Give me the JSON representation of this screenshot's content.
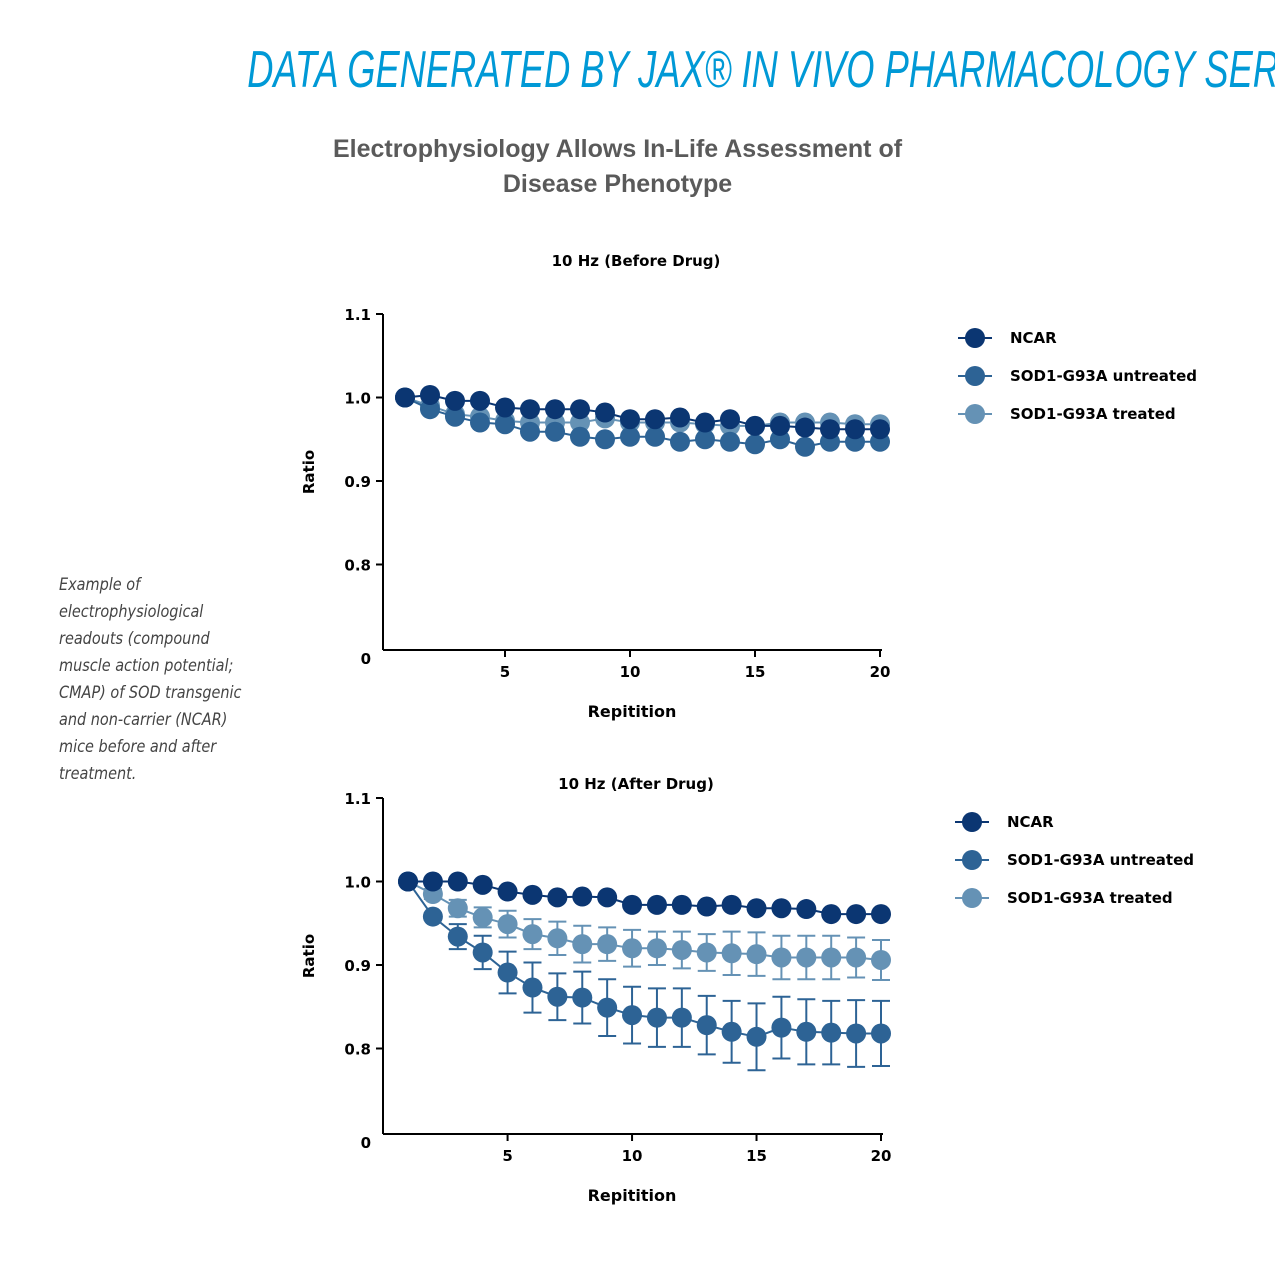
{
  "header": "DATA GENERATED BY JAX® IN VIVO PHARMACOLOGY SERVICES",
  "subtitle_lines": [
    "Electrophysiology Allows In-Life Assessment of",
    "Disease Phenotype"
  ],
  "caption": "Example of electrophysiological readouts (compound muscle action potential; CMAP) of SOD transgenic and non-carrier (NCAR) mice before and after treatment.",
  "colors": {
    "title": "#0099d6",
    "NCAR": "#0b3672",
    "untreated": "#2d6395",
    "treated": "#6592b5"
  },
  "chart_data": [
    {
      "type": "line",
      "title": "10 Hz (Before Drug)",
      "xlabel": "Repitition",
      "ylabel": "Ratio",
      "xticks": [
        "5",
        "10",
        "15",
        "20"
      ],
      "yticks": [
        "0.8",
        "0.9",
        "1.0",
        "1.1"
      ],
      "y_origin_label": "0",
      "xlim": [
        0,
        20
      ],
      "ylim": [
        0.7,
        1.1
      ],
      "legend_position": "right",
      "x": [
        1,
        2,
        3,
        4,
        5,
        6,
        7,
        8,
        9,
        10,
        11,
        12,
        13,
        14,
        15,
        16,
        17,
        18,
        19,
        20
      ],
      "series": [
        {
          "name": "SOD1-G93A treated",
          "color": "#6592b5",
          "values": [
            1.0,
            0.99,
            0.98,
            0.977,
            0.972,
            0.97,
            0.97,
            0.97,
            0.975,
            0.97,
            0.97,
            0.97,
            0.968,
            0.966,
            0.966,
            0.97,
            0.97,
            0.97,
            0.968,
            0.968
          ]
        },
        {
          "name": "SOD1-G93A untreated",
          "color": "#2d6395",
          "values": [
            1.0,
            0.986,
            0.977,
            0.97,
            0.968,
            0.959,
            0.959,
            0.953,
            0.95,
            0.953,
            0.953,
            0.947,
            0.95,
            0.947,
            0.944,
            0.95,
            0.941,
            0.947,
            0.947,
            0.947
          ]
        },
        {
          "name": "NCAR",
          "color": "#0b3672",
          "values": [
            1.0,
            1.003,
            0.996,
            0.996,
            0.988,
            0.986,
            0.986,
            0.986,
            0.982,
            0.974,
            0.974,
            0.976,
            0.97,
            0.974,
            0.966,
            0.966,
            0.964,
            0.962,
            0.962,
            0.962
          ]
        }
      ],
      "legend": [
        "NCAR",
        "SOD1-G93A untreated",
        "SOD1-G93A treated"
      ]
    },
    {
      "type": "line",
      "title": "10 Hz (After Drug)",
      "xlabel": "Repitition",
      "ylabel": "Ratio",
      "xticks": [
        "5",
        "10",
        "15",
        "20"
      ],
      "yticks": [
        "0.8",
        "0.9",
        "1.0",
        "1.1"
      ],
      "y_origin_label": "0",
      "xlim": [
        0,
        20
      ],
      "ylim": [
        0.7,
        1.1
      ],
      "legend_position": "right",
      "x": [
        1,
        2,
        3,
        4,
        5,
        6,
        7,
        8,
        9,
        10,
        11,
        12,
        13,
        14,
        15,
        16,
        17,
        18,
        19,
        20
      ],
      "series": [
        {
          "name": "SOD1-G93A treated",
          "color": "#6592b5",
          "values": [
            1.0,
            0.985,
            0.968,
            0.957,
            0.949,
            0.937,
            0.932,
            0.925,
            0.925,
            0.92,
            0.92,
            0.918,
            0.915,
            0.914,
            0.913,
            0.909,
            0.909,
            0.909,
            0.909,
            0.906
          ],
          "errors": [
            0,
            0.006,
            0.01,
            0.012,
            0.016,
            0.018,
            0.02,
            0.022,
            0.02,
            0.022,
            0.02,
            0.022,
            0.022,
            0.026,
            0.026,
            0.026,
            0.026,
            0.026,
            0.024,
            0.024
          ]
        },
        {
          "name": "SOD1-G93A untreated",
          "color": "#2d6395",
          "values": [
            1.0,
            0.958,
            0.934,
            0.915,
            0.891,
            0.873,
            0.862,
            0.861,
            0.849,
            0.84,
            0.837,
            0.837,
            0.828,
            0.82,
            0.814,
            0.825,
            0.82,
            0.819,
            0.818,
            0.818
          ],
          "errors": [
            0,
            0.004,
            0.015,
            0.02,
            0.025,
            0.03,
            0.028,
            0.031,
            0.034,
            0.034,
            0.035,
            0.035,
            0.035,
            0.037,
            0.04,
            0.037,
            0.039,
            0.038,
            0.04,
            0.039
          ]
        },
        {
          "name": "NCAR",
          "color": "#0b3672",
          "values": [
            1.0,
            1.0,
            1.0,
            0.996,
            0.988,
            0.984,
            0.981,
            0.982,
            0.981,
            0.972,
            0.972,
            0.972,
            0.97,
            0.972,
            0.968,
            0.968,
            0.967,
            0.961,
            0.961,
            0.961
          ]
        }
      ],
      "legend": [
        "NCAR",
        "SOD1-G93A untreated",
        "SOD1-G93A treated"
      ]
    }
  ]
}
